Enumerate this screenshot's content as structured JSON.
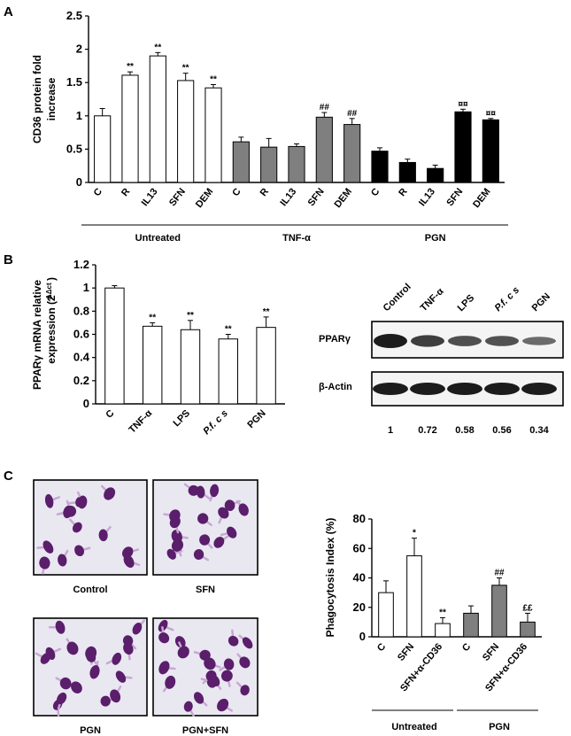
{
  "panels": {
    "a": "A",
    "b": "B",
    "c": "C"
  },
  "colors": {
    "untreated": "#ffffff",
    "tnf": "#7f7f7f",
    "pgn": "#000000",
    "cell": "#5a1e6b",
    "background": "#e9e8f1"
  },
  "chart_data": [
    {
      "id": "A",
      "type": "bar",
      "ylabel_line1": "CD36 protein fold",
      "ylabel_line2": "increase",
      "ylim": [
        0,
        2.5
      ],
      "yticks": [
        "0",
        "0.5",
        "1",
        "1.5",
        "2",
        "2.5"
      ],
      "categories": [
        "C",
        "R",
        "IL13",
        "SFN",
        "DEM",
        "C",
        "R",
        "IL13",
        "SFN",
        "DEM",
        "C",
        "R",
        "IL13",
        "SFN",
        "DEM"
      ],
      "values": [
        1.0,
        1.61,
        1.9,
        1.53,
        1.42,
        0.61,
        0.53,
        0.54,
        0.98,
        0.87,
        0.47,
        0.3,
        0.21,
        1.06,
        0.94
      ],
      "errors": [
        0.11,
        0.05,
        0.05,
        0.11,
        0.05,
        0.07,
        0.13,
        0.04,
        0.07,
        0.09,
        0.05,
        0.05,
        0.05,
        0.04,
        0.02
      ],
      "annotations": [
        "",
        "**",
        "**",
        "**",
        "**",
        "",
        "",
        "",
        "##",
        "##",
        "",
        "",
        "",
        "¤¤",
        "¤¤"
      ],
      "groups": [
        {
          "name": "Untreated",
          "color": "#ffffff"
        },
        {
          "name": "TNF-α",
          "color": "#7f7f7f"
        },
        {
          "name": "PGN",
          "color": "#000000"
        }
      ]
    },
    {
      "id": "B",
      "type": "bar",
      "ylabel_line1": "PPARγ mRNA relative",
      "ylabel_line2": "expression (2",
      "ylabel_sup": "-ΔΔct",
      "ylim": [
        0,
        1.2
      ],
      "yticks": [
        "0",
        "0.2",
        "0.4",
        "0.6",
        "0.8",
        "1",
        "1.2"
      ],
      "categories": [
        "C",
        "TNF-α",
        "LPS",
        "P.f. c s",
        "PGN"
      ],
      "values": [
        1.0,
        0.67,
        0.64,
        0.56,
        0.66
      ],
      "errors": [
        0.02,
        0.03,
        0.08,
        0.04,
        0.09
      ],
      "annotations": [
        "",
        "**",
        "**",
        "**",
        "**"
      ]
    },
    {
      "id": "C",
      "type": "bar",
      "ylabel": "Phagocytosis Index (%)",
      "ylim": [
        0,
        80
      ],
      "yticks": [
        "0",
        "20",
        "40",
        "60",
        "80"
      ],
      "categories": [
        "C",
        "SFN",
        "SFN+α-CD36",
        "C",
        "SFN",
        "SFN+α-CD36"
      ],
      "values": [
        30,
        55,
        9,
        16,
        35,
        10
      ],
      "errors": [
        8,
        12,
        4,
        5,
        5,
        6
      ],
      "annotations": [
        "",
        "*",
        "**",
        "",
        "##",
        "££"
      ],
      "groups": [
        {
          "name": "Untreated",
          "color": "#ffffff"
        },
        {
          "name": "PGN",
          "color": "#7f7f7f"
        }
      ]
    }
  ],
  "blot": {
    "lanes": [
      "Control",
      "TNF-α",
      "LPS",
      "P.f. c s",
      "PGN"
    ],
    "rows": [
      "PPARγ",
      "β-Actin"
    ],
    "ratios": [
      "1",
      "0.72",
      "0.58",
      "0.56",
      "0.34"
    ],
    "pparg_intensity": [
      1.0,
      0.72,
      0.58,
      0.56,
      0.34
    ]
  },
  "micrographs": [
    "Control",
    "SFN",
    "PGN",
    "PGN+SFN"
  ]
}
